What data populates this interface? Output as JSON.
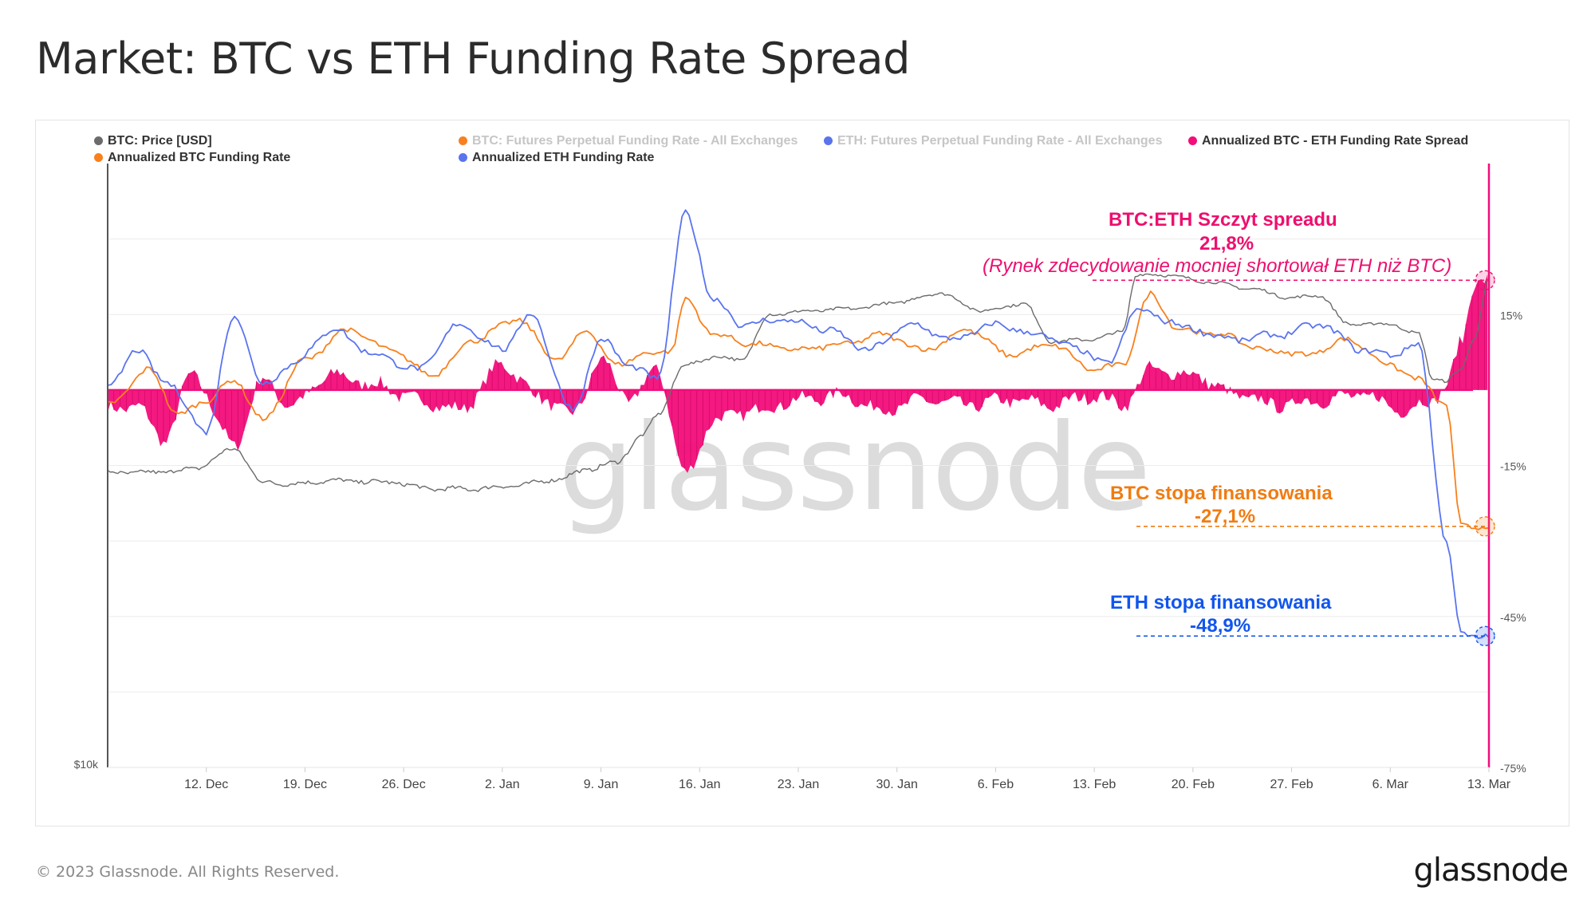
{
  "title": "Market: BTC vs ETH Funding Rate Spread",
  "footer": {
    "copyright": "© 2023 Glassnode. All Rights Reserved.",
    "logo": "glassnode"
  },
  "watermark": "glassnode",
  "colors": {
    "price": "#6b6b6b",
    "btc": "#f7811e",
    "eth": "#5a74ee",
    "spread": "#f20d7a",
    "btc_annot": "#f07c12",
    "eth_annot": "#1155ee",
    "spread_annot": "#ee0f6f"
  },
  "legend": [
    {
      "label": "BTC: Price [USD]",
      "color": "#6b6b6b",
      "faded": false,
      "name": "legend-btc-price"
    },
    {
      "label": "BTC: Futures Perpetual Funding Rate - All Exchanges",
      "color": "#f7811e",
      "faded": true,
      "name": "legend-btc-funding-raw"
    },
    {
      "label": "ETH: Futures Perpetual Funding Rate - All Exchanges",
      "color": "#5a74ee",
      "faded": true,
      "name": "legend-eth-funding-raw"
    },
    {
      "label": "Annualized BTC - ETH Funding Rate Spread",
      "color": "#f20d7a",
      "faded": false,
      "name": "legend-spread"
    },
    {
      "label": "Annualized BTC Funding Rate",
      "color": "#f7811e",
      "faded": false,
      "name": "legend-btc-annualized"
    },
    {
      "label": "Annualized ETH Funding Rate",
      "color": "#5a74ee",
      "faded": false,
      "name": "legend-eth-annualized"
    }
  ],
  "annotations": {
    "spread_title": "BTC:ETH Szczyt spreadu",
    "spread_value": "21,8%",
    "spread_note": "(Rynek zdecydowanie mocniej shortował ETH niż BTC)",
    "btc_title": "BTC stopa finansowania",
    "btc_value": "-27,1%",
    "eth_title": "ETH stopa finansowania",
    "eth_value": "-48,9%"
  },
  "chart_data": {
    "type": "line",
    "x_axis": {
      "type": "date",
      "start": "2022-12-05",
      "end": "2023-03-13",
      "tick_labels": [
        "12. Dec",
        "19. Dec",
        "26. Dec",
        "2. Jan",
        "9. Jan",
        "16. Jan",
        "23. Jan",
        "30. Jan",
        "6. Feb",
        "13. Feb",
        "20. Feb",
        "27. Feb",
        "6. Mar",
        "13. Mar"
      ],
      "tick_dates": [
        "2022-12-12",
        "2022-12-19",
        "2022-12-26",
        "2023-01-02",
        "2023-01-09",
        "2023-01-16",
        "2023-01-23",
        "2023-01-30",
        "2023-02-06",
        "2023-02-13",
        "2023-02-20",
        "2023-02-27",
        "2023-03-06",
        "2023-03-13"
      ]
    },
    "y_left": {
      "scale": "log",
      "tick_labels": [
        "$10k"
      ],
      "ticks": [
        10000
      ],
      "range": [
        10000,
        30000
      ]
    },
    "y_right": {
      "unit": "%",
      "tick_labels": [
        "15%",
        "-15%",
        "-45%",
        "-75%"
      ],
      "ticks": [
        15,
        -15,
        -45,
        -75
      ],
      "range": [
        -75,
        45
      ]
    },
    "series": [
      {
        "name": "BTC: Price [USD]",
        "axis": "left",
        "dates": [
          "2022-12-05",
          "2022-12-08",
          "2022-12-11",
          "2022-12-14",
          "2022-12-16",
          "2022-12-18",
          "2022-12-21",
          "2022-12-25",
          "2022-12-28",
          "2022-12-31",
          "2023-01-03",
          "2023-01-06",
          "2023-01-08",
          "2023-01-10",
          "2023-01-12",
          "2023-01-13",
          "2023-01-15",
          "2023-01-17",
          "2023-01-19",
          "2023-01-21",
          "2023-01-24",
          "2023-01-27",
          "2023-01-30",
          "2023-02-02",
          "2023-02-05",
          "2023-02-08",
          "2023-02-10",
          "2023-02-13",
          "2023-02-15",
          "2023-02-16",
          "2023-02-18",
          "2023-02-21",
          "2023-02-24",
          "2023-02-27",
          "2023-03-01",
          "2023-03-03",
          "2023-03-06",
          "2023-03-08",
          "2023-03-09",
          "2023-03-10",
          "2023-03-11",
          "2023-03-12",
          "2023-03-13"
        ],
        "values": [
          17100,
          17100,
          17200,
          17850,
          16800,
          16750,
          16850,
          16800,
          16600,
          16600,
          16700,
          16900,
          17200,
          17400,
          18300,
          19000,
          20800,
          21100,
          21000,
          22800,
          22950,
          23050,
          23300,
          23700,
          22950,
          23250,
          21700,
          21800,
          22100,
          24500,
          24500,
          24200,
          23900,
          23500,
          23600,
          22400,
          22400,
          22000,
          20300,
          20200,
          20600,
          21900,
          24300
        ]
      },
      {
        "name": "Annualized BTC Funding Rate",
        "axis": "right",
        "unit": "%",
        "dates": [
          "2022-12-05",
          "2022-12-08",
          "2022-12-10",
          "2022-12-12",
          "2022-12-14",
          "2022-12-16",
          "2022-12-19",
          "2022-12-22",
          "2022-12-25",
          "2022-12-28",
          "2022-12-31",
          "2023-01-03",
          "2023-01-06",
          "2023-01-08",
          "2023-01-10",
          "2023-01-12",
          "2023-01-14",
          "2023-01-15",
          "2023-01-17",
          "2023-01-20",
          "2023-01-23",
          "2023-01-26",
          "2023-01-29",
          "2023-02-01",
          "2023-02-04",
          "2023-02-07",
          "2023-02-10",
          "2023-02-13",
          "2023-02-15",
          "2023-02-17",
          "2023-02-19",
          "2023-02-22",
          "2023-02-25",
          "2023-02-28",
          "2023-03-03",
          "2023-03-06",
          "2023-03-08",
          "2023-03-10",
          "2023-03-11",
          "2023-03-12",
          "2023-03-13"
        ],
        "values": [
          -3,
          4,
          -5,
          -2,
          2,
          -6,
          6,
          12,
          8,
          3,
          10,
          14,
          6,
          12,
          5,
          7,
          8,
          18,
          11,
          9,
          8,
          9,
          11,
          8,
          12,
          7,
          9,
          4,
          5,
          19,
          12,
          11,
          8,
          7,
          10,
          5,
          2,
          -3,
          -27,
          -27.1,
          -27.1
        ]
      },
      {
        "name": "Annualized ETH Funding Rate",
        "axis": "right",
        "unit": "%",
        "dates": [
          "2022-12-05",
          "2022-12-07",
          "2022-12-09",
          "2022-12-12",
          "2022-12-14",
          "2022-12-16",
          "2022-12-18",
          "2022-12-21",
          "2022-12-24",
          "2022-12-27",
          "2022-12-30",
          "2023-01-02",
          "2023-01-04",
          "2023-01-07",
          "2023-01-09",
          "2023-01-11",
          "2023-01-13",
          "2023-01-15",
          "2023-01-17",
          "2023-01-19",
          "2023-01-22",
          "2023-01-25",
          "2023-01-28",
          "2023-01-31",
          "2023-02-03",
          "2023-02-06",
          "2023-02-09",
          "2023-02-12",
          "2023-02-14",
          "2023-02-16",
          "2023-02-18",
          "2023-02-20",
          "2023-02-23",
          "2023-02-26",
          "2023-03-01",
          "2023-03-04",
          "2023-03-06",
          "2023-03-08",
          "2023-03-10",
          "2023-03-11",
          "2023-03-12",
          "2023-03-13"
        ],
        "values": [
          0,
          8,
          2,
          -8,
          15,
          1,
          5,
          12,
          7,
          4,
          13,
          8,
          15,
          -4,
          10,
          5,
          2,
          35,
          18,
          13,
          14,
          12,
          8,
          13,
          10,
          13,
          11,
          8,
          5,
          16,
          14,
          12,
          10,
          11,
          13,
          8,
          7,
          9,
          -30,
          -48.5,
          -48.9,
          -48.9
        ]
      },
      {
        "name": "Annualized BTC - ETH Funding Rate Spread",
        "axis": "right",
        "unit": "%",
        "type": "area",
        "dates": [
          "2022-12-05",
          "2022-12-07",
          "2022-12-09",
          "2022-12-11",
          "2022-12-14",
          "2022-12-16",
          "2022-12-18",
          "2022-12-21",
          "2022-12-24",
          "2022-12-27",
          "2022-12-30",
          "2023-01-02",
          "2023-01-05",
          "2023-01-07",
          "2023-01-09",
          "2023-01-11",
          "2023-01-13",
          "2023-01-15",
          "2023-01-17",
          "2023-01-20",
          "2023-01-23",
          "2023-01-26",
          "2023-01-29",
          "2023-02-01",
          "2023-02-04",
          "2023-02-07",
          "2023-02-10",
          "2023-02-13",
          "2023-02-15",
          "2023-02-17",
          "2023-02-20",
          "2023-02-23",
          "2023-02-26",
          "2023-03-01",
          "2023-03-04",
          "2023-03-07",
          "2023-03-09",
          "2023-03-10",
          "2023-03-11",
          "2023-03-12",
          "2023-03-13"
        ],
        "values": [
          -4,
          -3,
          -10,
          3,
          -11,
          2,
          -3,
          3,
          1,
          -2,
          -4,
          5,
          -2,
          -5,
          6,
          -2,
          4,
          -17,
          -6,
          -4,
          -2,
          -1,
          -4,
          -2,
          -3,
          -2,
          -3,
          -1,
          -3,
          4,
          3,
          -1,
          -3,
          -2,
          -1,
          -4,
          -2,
          1,
          9,
          21.8,
          21.8
        ]
      }
    ]
  }
}
